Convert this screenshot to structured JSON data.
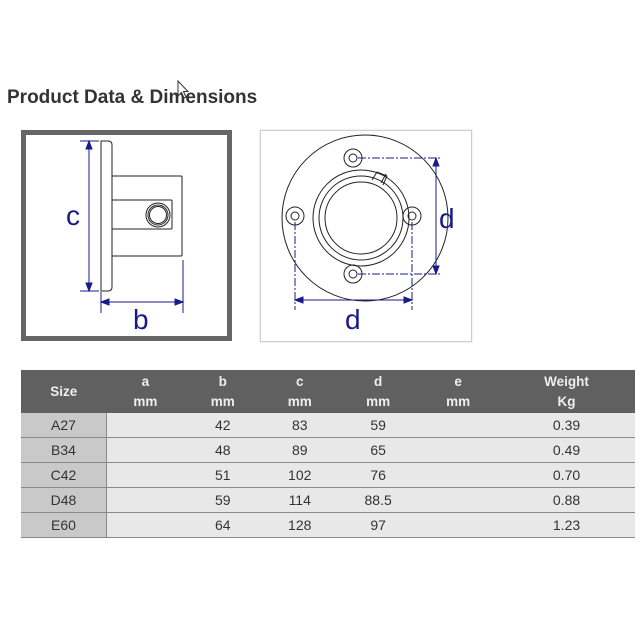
{
  "title": "Product Data & Dimensions",
  "diagrams": {
    "side_view": {
      "label_c": "c",
      "label_b": "b"
    },
    "top_view": {
      "label_d_vertical": "d",
      "label_d_horizontal": "d"
    },
    "line_color": "#1a1a8c"
  },
  "table": {
    "headers": [
      {
        "line1": "Size",
        "line2": ""
      },
      {
        "line1": "a",
        "line2": "mm"
      },
      {
        "line1": "b",
        "line2": "mm"
      },
      {
        "line1": "c",
        "line2": "mm"
      },
      {
        "line1": "d",
        "line2": "mm"
      },
      {
        "line1": "e",
        "line2": "mm"
      },
      {
        "line1": "Weight",
        "line2": "Kg"
      }
    ],
    "rows": [
      [
        "A27",
        "",
        "42",
        "83",
        "59",
        "",
        "0.39"
      ],
      [
        "B34",
        "",
        "48",
        "89",
        "65",
        "",
        "0.49"
      ],
      [
        "C42",
        "",
        "51",
        "102",
        "76",
        "",
        "0.70"
      ],
      [
        "D48",
        "",
        "59",
        "114",
        "88.5",
        "",
        "0.88"
      ],
      [
        "E60",
        "",
        "64",
        "128",
        "97",
        "",
        "1.23"
      ]
    ]
  }
}
